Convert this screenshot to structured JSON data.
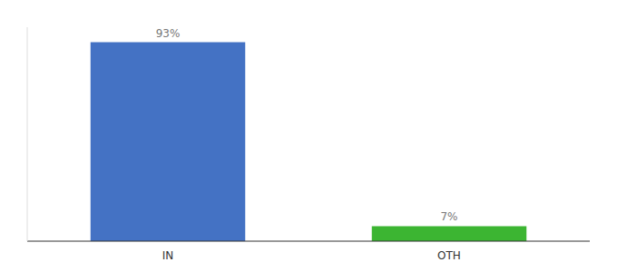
{
  "chart_data": {
    "type": "bar",
    "categories": [
      "IN",
      "OTH"
    ],
    "values": [
      93,
      7
    ],
    "value_labels": [
      "93%",
      "7%"
    ],
    "colors": [
      "#4472c4",
      "#3cb532"
    ],
    "ylim": [
      0,
      100
    ],
    "data_labels": true,
    "tick_labels": "x",
    "grid": false
  }
}
